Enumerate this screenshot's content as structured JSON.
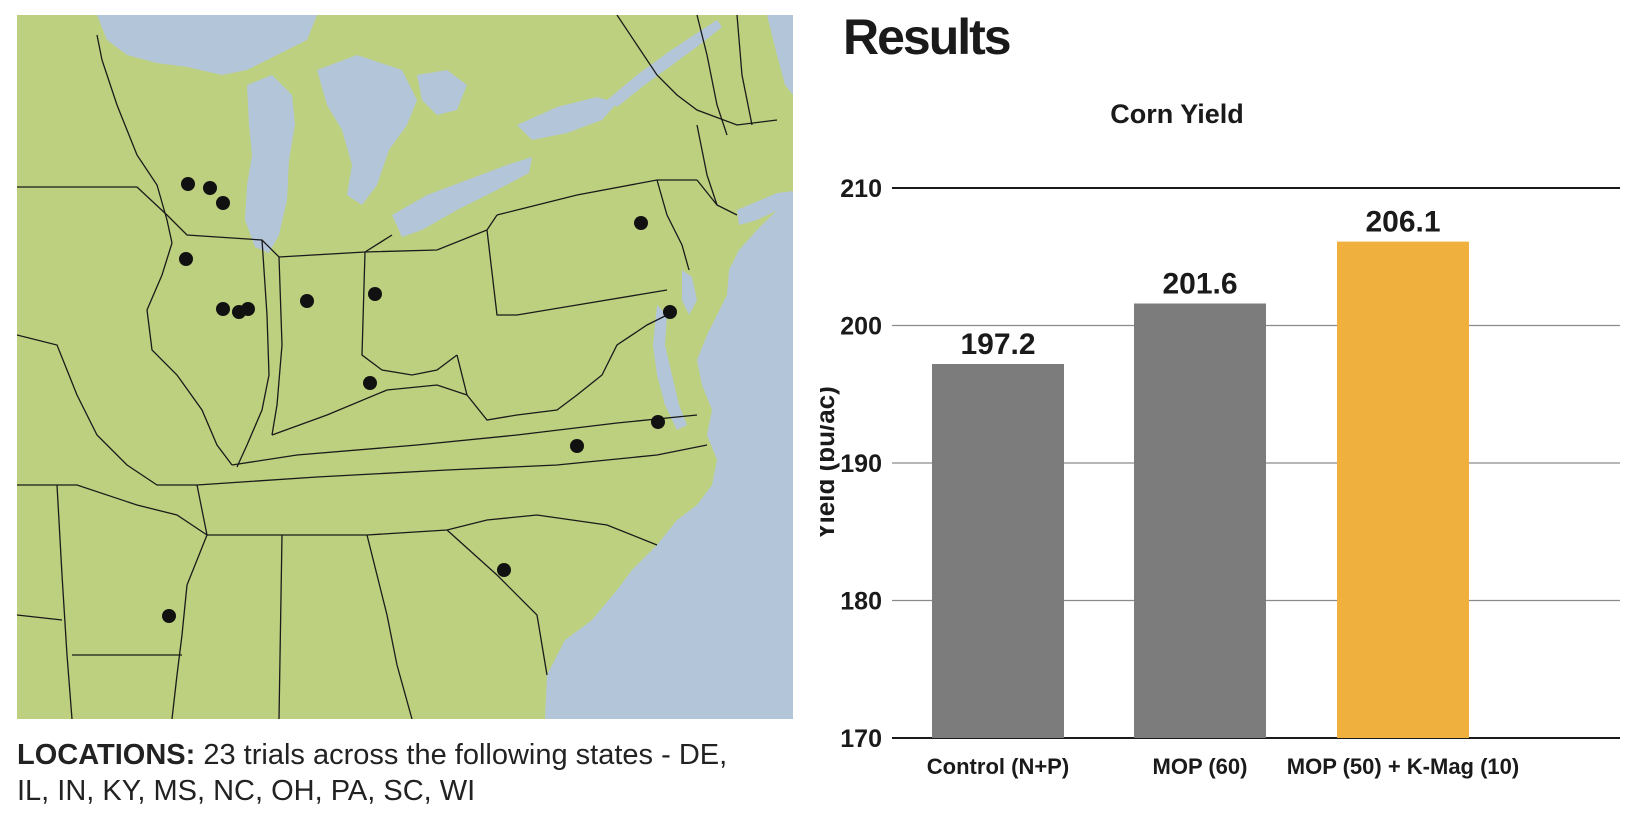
{
  "map": {
    "caption_label": "LOCATIONS:",
    "caption_text": "23 trials across the following states - DE, IL, IN, KY, MS, NC, OH, PA, SC, WI",
    "colors": {
      "land": "#bdd07f",
      "water": "#b3c6d9",
      "border": "#1a1a1a",
      "marker": "#111111"
    }
  },
  "results_title": "Results",
  "chart_data": {
    "type": "bar",
    "title": "Corn Yield",
    "xlabel": "",
    "ylabel": "Yield (bu/ac)",
    "ylim": [
      170,
      210
    ],
    "yticks": [
      170,
      180,
      190,
      200,
      210
    ],
    "grid": true,
    "categories": [
      "Control (N+P)",
      "MOP (60)",
      "MOP (50) + K-Mag (10)"
    ],
    "values": [
      197.2,
      201.6,
      206.1
    ],
    "value_labels": [
      "197.2",
      "201.6",
      "206.1"
    ],
    "colors": [
      "#7b7c7b",
      "#7b7c7b",
      "#f0b03e"
    ]
  }
}
